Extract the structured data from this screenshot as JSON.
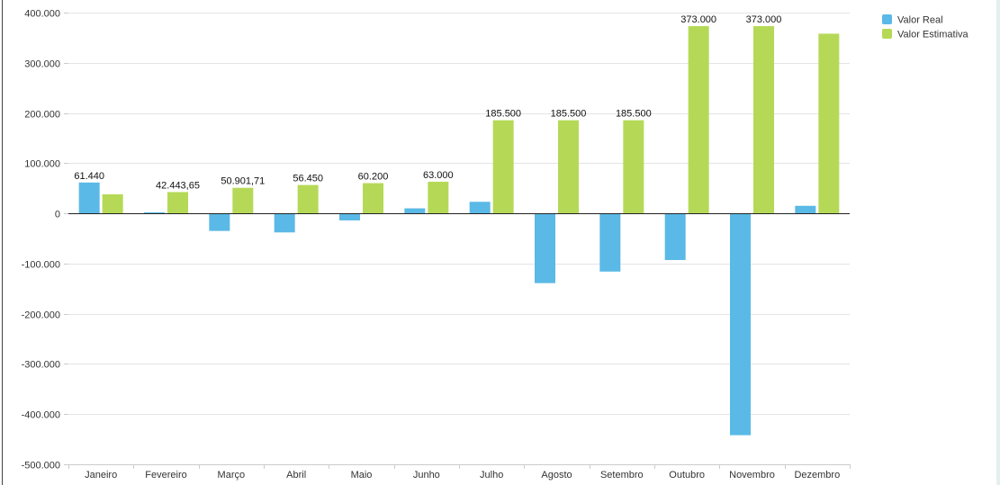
{
  "chart_data": {
    "type": "bar",
    "categories": [
      "Janeiro",
      "Fevereiro",
      "Março",
      "Abril",
      "Maio",
      "Junho",
      "Julho",
      "Agosto",
      "Setembro",
      "Outubro",
      "Novembro",
      "Dezembro"
    ],
    "series": [
      {
        "name": "Valor Real",
        "color": "#5ab9e6",
        "values": [
          61440,
          2000,
          -35000,
          -38000,
          -14000,
          10000,
          23000,
          -139000,
          -116000,
          -93000,
          -442000,
          15000
        ],
        "labels": [
          "61.440",
          "",
          "",
          "",
          "",
          "",
          "",
          "",
          "",
          "",
          "",
          ""
        ]
      },
      {
        "name": "Valor Estimativa",
        "color": "#b5d957",
        "values": [
          38000,
          42443.65,
          50901.71,
          56450,
          60200,
          63000,
          185500,
          185500,
          185500,
          373000,
          373000,
          358000
        ],
        "labels": [
          "",
          "42.443,65",
          "50.901,71",
          "56.450",
          "60.200",
          "63.000",
          "185.500",
          "185.500",
          "185.500",
          "373.000",
          "373.000",
          ""
        ]
      }
    ],
    "y_ticks": [
      400000,
      300000,
      200000,
      100000,
      0,
      -100000,
      -200000,
      -300000,
      -400000,
      -500000
    ],
    "y_tick_labels": [
      "400.000",
      "300.000",
      "200.000",
      "100.000",
      "0",
      "-100.000",
      "-200.000",
      "-300.000",
      "-400.000",
      "-500.000"
    ],
    "ylim": [
      -500000,
      400000
    ],
    "grid": true,
    "legend_position": "top-right",
    "title": "",
    "xlabel": "",
    "ylabel": ""
  }
}
